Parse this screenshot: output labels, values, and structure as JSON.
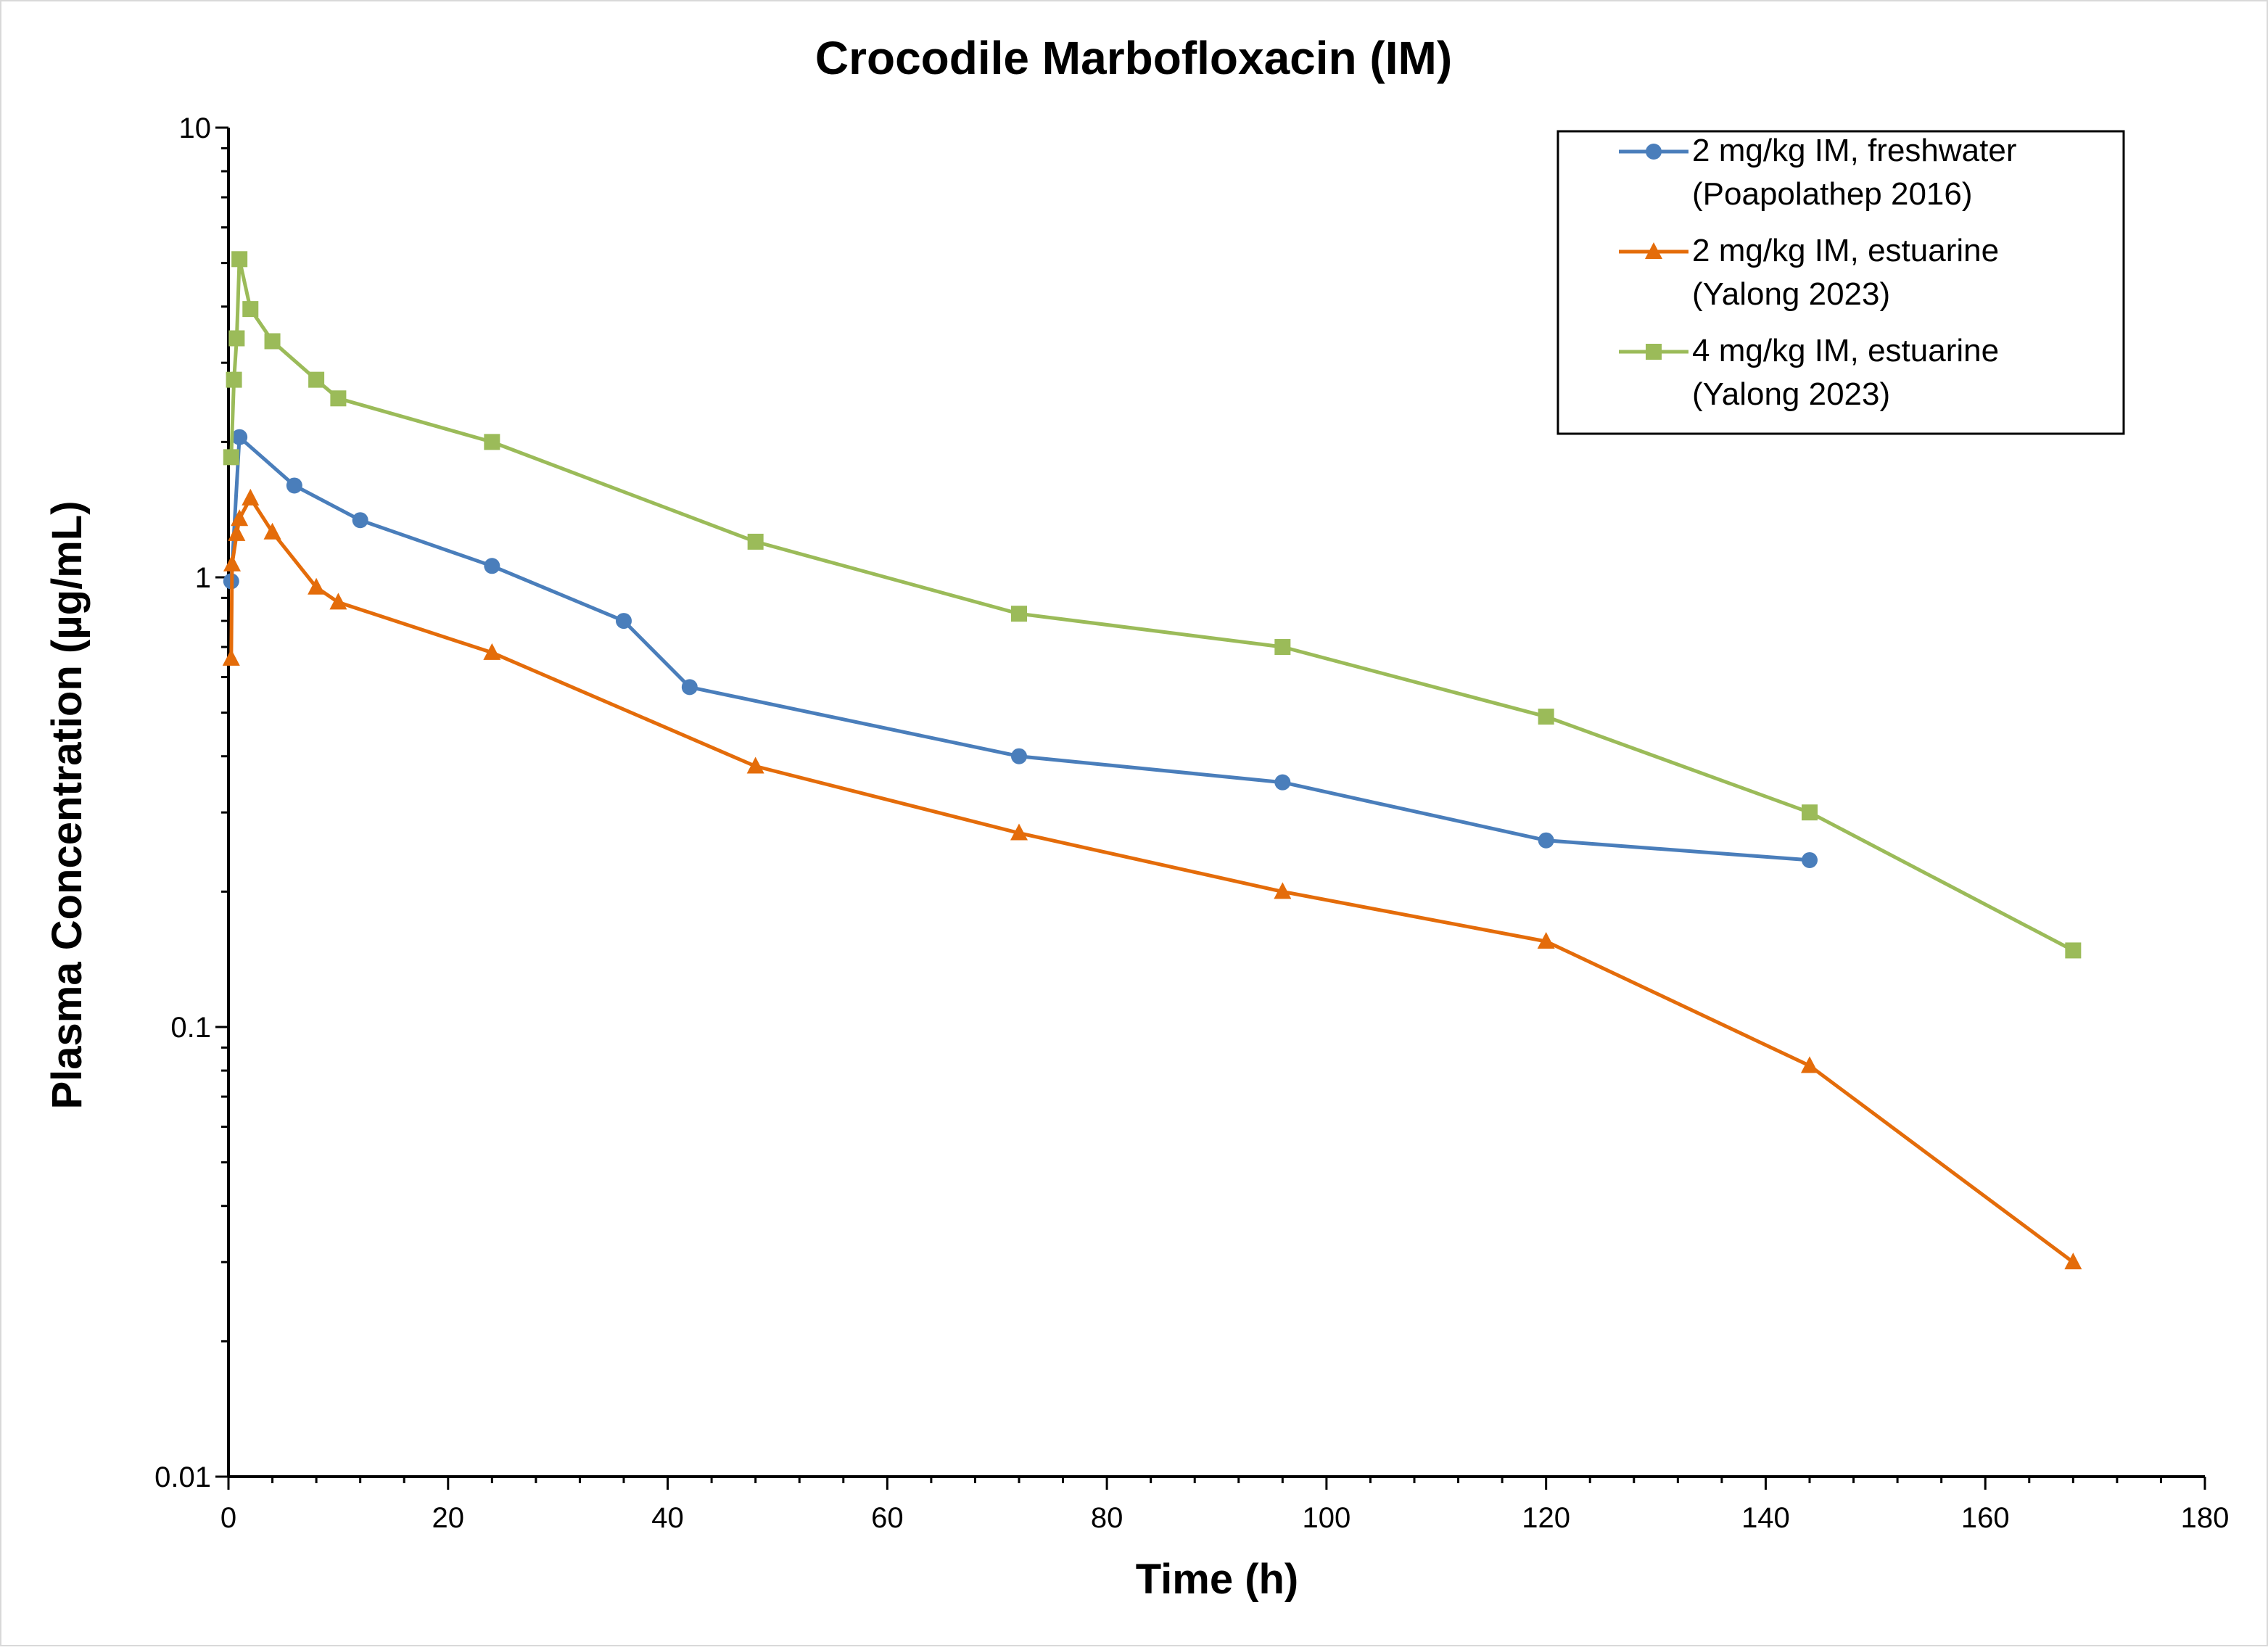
{
  "chart_data": {
    "type": "line",
    "title": "Crocodile Marbofloxacin (IM)",
    "xlabel": "Time (h)",
    "ylabel": "Plasma Concentration (µg/mL)",
    "x_range": [
      0,
      180
    ],
    "x_ticks": [
      0,
      20,
      40,
      60,
      80,
      100,
      120,
      140,
      160,
      180
    ],
    "x_minor_step": 4,
    "y_scale": "log",
    "y_range": [
      0.01,
      10
    ],
    "y_ticks": [
      {
        "value": 0.01,
        "label": "0.01"
      },
      {
        "value": 0.1,
        "label": "0.1"
      },
      {
        "value": 1,
        "label": "1"
      },
      {
        "value": 10,
        "label": "10"
      }
    ],
    "grid": false,
    "legend_position": "top-right",
    "series": [
      {
        "name": "2 mg/kg IM, freshwater (Poapolathep 2016)",
        "legend_lines": [
          "2 mg/kg IM, freshwater",
          "(Poapolathep 2016)"
        ],
        "color": "#4a7ebb",
        "marker": "circle",
        "x": [
          0.25,
          1,
          6,
          12,
          24,
          36,
          42,
          72,
          96,
          120,
          144
        ],
        "y": [
          0.98,
          2.05,
          1.6,
          1.34,
          1.06,
          0.8,
          0.57,
          0.4,
          0.35,
          0.26,
          0.235
        ]
      },
      {
        "name": "2 mg/kg IM, estuarine (Yalong 2023)",
        "legend_lines": [
          "2 mg/kg IM, estuarine",
          "(Yalong 2023)"
        ],
        "color": "#e46c0a",
        "marker": "triangle",
        "x": [
          0.25,
          0.33,
          0.75,
          1,
          2,
          4,
          8,
          10,
          24,
          48,
          72,
          96,
          120,
          144,
          168
        ],
        "y": [
          0.66,
          1.07,
          1.25,
          1.35,
          1.5,
          1.26,
          0.95,
          0.88,
          0.68,
          0.38,
          0.27,
          0.2,
          0.155,
          0.082,
          0.03
        ]
      },
      {
        "name": "4 mg/kg IM, estuarine (Yalong 2023)",
        "legend_lines": [
          "4 mg/kg IM, estuarine",
          "(Yalong 2023)"
        ],
        "color": "#9bbb59",
        "marker": "square",
        "x": [
          0.25,
          0.5,
          0.75,
          1,
          2,
          4,
          8,
          10,
          24,
          48,
          72,
          96,
          120,
          144,
          168
        ],
        "y": [
          1.85,
          2.75,
          3.4,
          5.1,
          3.95,
          3.35,
          2.75,
          2.5,
          2.0,
          1.2,
          0.83,
          0.7,
          0.49,
          0.3,
          0.148
        ]
      }
    ]
  }
}
